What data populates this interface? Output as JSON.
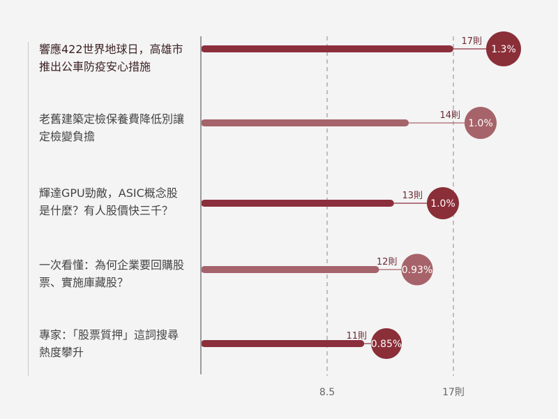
{
  "chart_data": {
    "type": "bar",
    "categories": [
      "響應422世界地球日，高雄市推出公車防疫安心措施",
      "老舊建築定檢保養費降低別讓定檢變負擔",
      "輝達GPU勁敵，ASIC概念股是什麼？有人股價快三千？",
      "一次看懂：為何企業要回購股票、實施庫藏股？",
      "專家：「股票質押」這詞搜尋熱度攀升"
    ],
    "values": [
      17,
      14,
      13,
      12,
      11
    ],
    "value_labels": [
      "17則",
      "14則",
      "13則",
      "12則",
      "11則"
    ],
    "percent_labels": [
      "1.3%",
      "1.0%",
      "1.0%",
      "0.93%",
      "0.85%"
    ],
    "percent_values": [
      1.3,
      1.0,
      1.0,
      0.93,
      0.85
    ],
    "x_ticks": [
      8.5,
      17
    ],
    "x_tick_labels": [
      "8.5",
      "17則"
    ],
    "xlim": [
      0,
      17
    ],
    "grid": "vertical dashed at ticks",
    "colors": {
      "dark": "#8b2f3c",
      "light": "#a5636b",
      "circle_dark": "#8a2e38",
      "circle_light": "#a66369",
      "grid": "#9a9a9a",
      "background": "#f4f4f4"
    }
  }
}
